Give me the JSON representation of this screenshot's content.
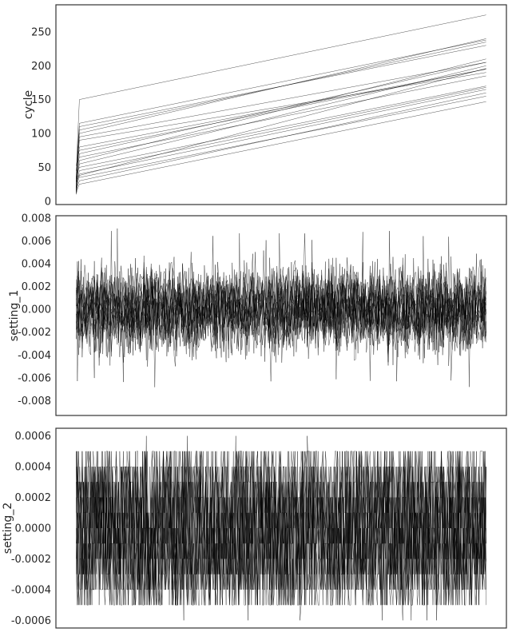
{
  "chart_data": [
    {
      "type": "line",
      "title": "",
      "xlabel": "",
      "ylabel": "cycle",
      "ylim": [
        -5,
        290
      ],
      "yticks": [
        0,
        50,
        100,
        150,
        200,
        250
      ],
      "ytick_labels": [
        "0",
        "50",
        "100",
        "150",
        "200",
        "250"
      ],
      "x_ticks_shown": false,
      "grid": false,
      "legend": "none",
      "series_pattern": "per-unit cycle counter, monotonically increasing",
      "series": [
        {
          "values": [
            12,
            38,
            72,
            100,
            150,
            196
          ]
        },
        {
          "values": [
            15,
            60,
            80,
            105,
            160,
            210
          ]
        },
        {
          "values": [
            18,
            100,
            116,
            135,
            180,
            240
          ]
        },
        {
          "values": [
            10,
            25,
            40,
            60,
            100,
            147
          ]
        },
        {
          "values": [
            20,
            150,
            162,
            180,
            225,
            275
          ]
        },
        {
          "values": [
            14,
            30,
            50,
            75,
            115,
            160
          ]
        },
        {
          "values": [
            16,
            45,
            62,
            85,
            125,
            168
          ]
        },
        {
          "values": [
            11,
            70,
            88,
            110,
            155,
            205
          ]
        }
      ]
    },
    {
      "type": "line",
      "title": "",
      "xlabel": "",
      "ylabel": "setting_1",
      "ylim": [
        -0.0093,
        0.0082
      ],
      "yticks": [
        -0.008,
        -0.006,
        -0.004,
        -0.002,
        0.0,
        0.002,
        0.004,
        0.006,
        0.008
      ],
      "ytick_labels": [
        "-0.008",
        "-0.006",
        "-0.004",
        "-0.002",
        "0.000",
        "0.002",
        "0.004",
        "0.006",
        "0.008"
      ],
      "x_ticks_shown": false,
      "grid": false,
      "legend": "none",
      "series_pattern": "dense noise centered at 0.000, roughly within ±0.006",
      "series": [
        {
          "values": [
            0.0005,
            -0.0021,
            0.0018,
            -0.0004,
            0.0032,
            -0.0015,
            0.0009,
            -0.0028,
            0.0014,
            0.0002,
            -0.0011,
            0.0025
          ]
        },
        {
          "values": [
            -0.0012,
            0.0007,
            -0.0033,
            0.0021,
            -0.0006,
            0.0038,
            -0.0019,
            0.0011,
            -0.0002,
            -0.0024,
            0.0016,
            -0.0008
          ]
        },
        {
          "values": [
            0.0022,
            -0.0009,
            0.0004,
            -0.0037,
            0.0013,
            0.0001,
            0.0029,
            -0.0016,
            0.0006,
            0.0019,
            -0.0031,
            0.0003
          ]
        }
      ],
      "extremes": {
        "max": 0.0072,
        "min": -0.0083
      }
    },
    {
      "type": "line",
      "title": "",
      "xlabel": "",
      "ylabel": "setting_2",
      "ylim": [
        -0.00065,
        0.00065
      ],
      "yticks": [
        -0.0006,
        -0.0004,
        -0.0002,
        0.0,
        0.0002,
        0.0004,
        0.0006
      ],
      "ytick_labels": [
        "-0.0006",
        "-0.0004",
        "-0.0002",
        "0.0000",
        "0.0002",
        "0.0004",
        "0.0006"
      ],
      "x_ticks_shown": false,
      "grid": false,
      "legend": "none",
      "series_pattern": "quantized noise in steps of 0.0001 between -0.0005 and 0.0005",
      "series": [
        {
          "values": [
            0.0001,
            -0.0003,
            0.0004,
            -0.0001,
            0.0002,
            -0.0004,
            0.0,
            0.0003,
            -0.0002,
            0.0005,
            -0.0005,
            0.0001
          ]
        },
        {
          "values": [
            -0.0002,
            0.0003,
            -0.0004,
            0.0001,
            -0.0001,
            0.0004,
            -0.0003,
            0.0002,
            0.0,
            -0.0005,
            0.0003,
            -0.0001
          ]
        }
      ],
      "extremes": {
        "max": 0.0006,
        "min": -0.0006
      }
    }
  ]
}
